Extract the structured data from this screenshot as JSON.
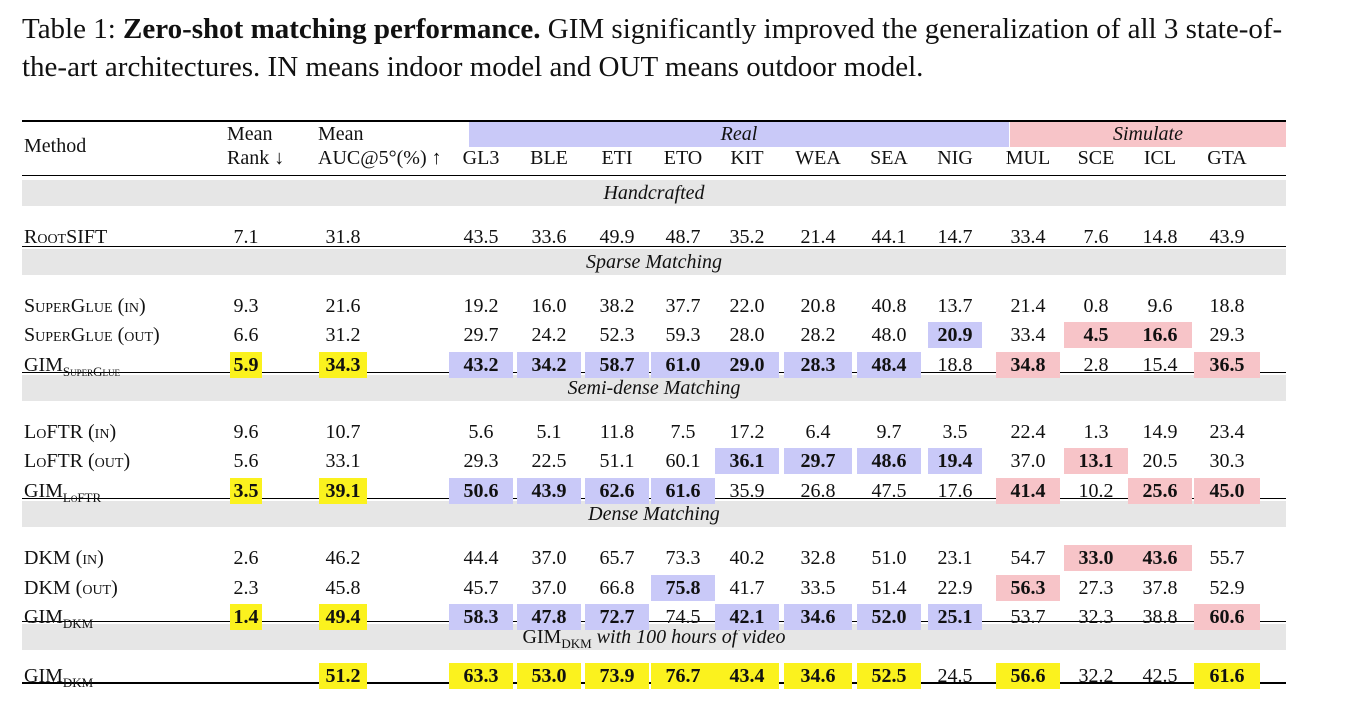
{
  "caption": {
    "label": "Table 1:",
    "title": "Zero-shot matching performance.",
    "text": "GIM significantly improved the generalization of all 3 state-of-the-art architectures. IN means indoor model and OUT means outdoor model."
  },
  "header": {
    "method": "Method",
    "mean_rank_1": "Mean",
    "mean_rank_2": "Rank ↓",
    "mean_auc_1": "Mean",
    "mean_auc_2": "AUC@5°(%) ↑",
    "real": "Real",
    "simulate": "Simulate",
    "columns": [
      "GL3",
      "BLE",
      "ETI",
      "ETO",
      "KIT",
      "WEA",
      "SEA",
      "NIG",
      "MUL",
      "SCE",
      "ICL",
      "GTA"
    ]
  },
  "sections": [
    {
      "title": "Handcrafted"
    },
    {
      "title": "Sparse Matching"
    },
    {
      "title": "Semi-dense Matching"
    },
    {
      "title": "Dense Matching"
    },
    {
      "title_main": "GIM",
      "title_sub": "DKM",
      "title_rest": " with 100 hours of video"
    }
  ],
  "rows": [
    {
      "method": "RootSIFT",
      "rank": "7.1",
      "auc": "31.8",
      "vals": [
        "43.5",
        "33.6",
        "49.9",
        "48.7",
        "35.2",
        "21.4",
        "44.1",
        "14.7",
        "33.4",
        "7.6",
        "14.8",
        "43.9"
      ]
    },
    {
      "method": "SuperGlue (in)",
      "rank": "9.3",
      "auc": "21.6",
      "vals": [
        "19.2",
        "16.0",
        "38.2",
        "37.7",
        "22.0",
        "20.8",
        "40.8",
        "13.7",
        "21.4",
        "0.8",
        "9.6",
        "18.8"
      ]
    },
    {
      "method": "SuperGlue (out)",
      "rank": "6.6",
      "auc": "31.2",
      "vals": [
        "29.7",
        "24.2",
        "52.3",
        "59.3",
        "28.0",
        "28.2",
        "48.0",
        "20.9",
        "33.4",
        "4.5",
        "16.6",
        "29.3"
      ]
    },
    {
      "method": "GIM",
      "method_sub": "SuperGlue",
      "rank": "5.9",
      "auc": "34.3",
      "vals": [
        "43.2",
        "34.2",
        "58.7",
        "61.0",
        "29.0",
        "28.3",
        "48.4",
        "18.8",
        "34.8",
        "2.8",
        "15.4",
        "36.5"
      ]
    },
    {
      "method": "LoFTR (in)",
      "rank": "9.6",
      "auc": "10.7",
      "vals": [
        "5.6",
        "5.1",
        "11.8",
        "7.5",
        "17.2",
        "6.4",
        "9.7",
        "3.5",
        "22.4",
        "1.3",
        "14.9",
        "23.4"
      ]
    },
    {
      "method": "LoFTR (out)",
      "rank": "5.6",
      "auc": "33.1",
      "vals": [
        "29.3",
        "22.5",
        "51.1",
        "60.1",
        "36.1",
        "29.7",
        "48.6",
        "19.4",
        "37.0",
        "13.1",
        "20.5",
        "30.3"
      ]
    },
    {
      "method": "GIM",
      "method_sub": "LoFTR",
      "rank": "3.5",
      "auc": "39.1",
      "vals": [
        "50.6",
        "43.9",
        "62.6",
        "61.6",
        "35.9",
        "26.8",
        "47.5",
        "17.6",
        "41.4",
        "10.2",
        "25.6",
        "45.0"
      ]
    },
    {
      "method": "DKM (in)",
      "rank": "2.6",
      "auc": "46.2",
      "vals": [
        "44.4",
        "37.0",
        "65.7",
        "73.3",
        "40.2",
        "32.8",
        "51.0",
        "23.1",
        "54.7",
        "33.0",
        "43.6",
        "55.7"
      ]
    },
    {
      "method": "DKM (out)",
      "rank": "2.3",
      "auc": "45.8",
      "vals": [
        "45.7",
        "37.0",
        "66.8",
        "75.8",
        "41.7",
        "33.5",
        "51.4",
        "22.9",
        "56.3",
        "27.3",
        "37.8",
        "52.9"
      ]
    },
    {
      "method": "GIM",
      "method_sub": "DKM",
      "rank": "1.4",
      "auc": "49.4",
      "vals": [
        "58.3",
        "47.8",
        "72.7",
        "74.5",
        "42.1",
        "34.6",
        "52.0",
        "25.1",
        "53.7",
        "32.3",
        "38.8",
        "60.6"
      ]
    },
    {
      "method": "GIM",
      "method_sub": "DKM",
      "rank": "",
      "auc": "51.2",
      "vals": [
        "63.3",
        "53.0",
        "73.9",
        "76.7",
        "43.4",
        "34.6",
        "52.5",
        "24.5",
        "56.6",
        "32.2",
        "42.5",
        "61.6"
      ]
    }
  ],
  "highlights": {
    "3": {
      "rank": "y",
      "auc": "y",
      "vals": [
        "b",
        "b",
        "b",
        "b",
        "b",
        "b",
        "b",
        "",
        "r",
        "",
        "",
        "r"
      ]
    },
    "2": {
      "vals": [
        "",
        "",
        "",
        "",
        "",
        "",
        "",
        "b",
        "",
        "r",
        "r",
        ""
      ]
    },
    "6": {
      "rank": "y",
      "auc": "y",
      "vals": [
        "b",
        "b",
        "b",
        "b",
        "",
        "",
        "",
        "",
        "r",
        "",
        "r",
        "r"
      ]
    },
    "5": {
      "vals": [
        "",
        "",
        "",
        "",
        "b",
        "b",
        "b",
        "b",
        "",
        "r",
        "",
        ""
      ]
    },
    "9": {
      "rank": "y",
      "auc": "y",
      "vals": [
        "b",
        "b",
        "b",
        "",
        "b",
        "b",
        "b",
        "b",
        "",
        "",
        "",
        "r"
      ]
    },
    "7": {
      "vals": [
        "",
        "",
        "",
        "",
        "",
        "",
        "",
        "",
        "",
        "r",
        "r",
        ""
      ]
    },
    "8": {
      "vals": [
        "",
        "",
        "",
        "b",
        "",
        "",
        "",
        "",
        "r",
        "",
        "",
        ""
      ]
    },
    "10": {
      "auc": "y",
      "vals": [
        "y",
        "y",
        "y",
        "y",
        "y",
        "y",
        "y",
        "",
        "y",
        "",
        "",
        "y"
      ]
    }
  },
  "colors": {
    "real": "#c9c9f8",
    "simulate": "#f7c4c8",
    "best": "#fbf21e",
    "band": "#e6e6e6"
  }
}
